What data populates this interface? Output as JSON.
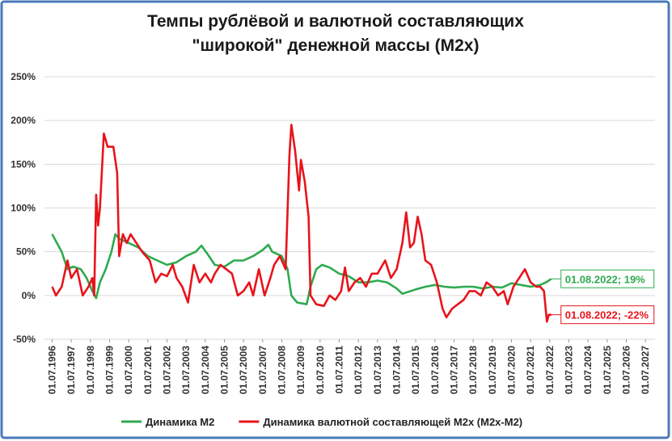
{
  "chart_data": {
    "type": "line",
    "title": [
      "Темпы рублёвой и валютной составляющих",
      "\"широкой\" денежной массы (М2х)"
    ],
    "xlim": [
      1996.1,
      2028.0
    ],
    "ylim": [
      -50,
      250
    ],
    "yticks": [
      {
        "value": -50,
        "label": "-50%"
      },
      {
        "value": 0,
        "label": "0%"
      },
      {
        "value": 50,
        "label": "50%"
      },
      {
        "value": 100,
        "label": "100%"
      },
      {
        "value": 150,
        "label": "150%"
      },
      {
        "value": 200,
        "label": "200%"
      },
      {
        "value": 250,
        "label": "250%"
      }
    ],
    "xticks": [
      {
        "value": 1996.5,
        "label": "01.07.1996"
      },
      {
        "value": 1997.5,
        "label": "01.07.1997"
      },
      {
        "value": 1998.5,
        "label": "01.07.1998"
      },
      {
        "value": 1999.5,
        "label": "01.07.1999"
      },
      {
        "value": 2000.5,
        "label": "01.07.2000"
      },
      {
        "value": 2001.5,
        "label": "01.07.2001"
      },
      {
        "value": 2002.5,
        "label": "01.07.2002"
      },
      {
        "value": 2003.5,
        "label": "01.07.2003"
      },
      {
        "value": 2004.5,
        "label": "01.07.2004"
      },
      {
        "value": 2005.5,
        "label": "01.07.2005"
      },
      {
        "value": 2006.5,
        "label": "01.07.2006"
      },
      {
        "value": 2007.5,
        "label": "01.07.2007"
      },
      {
        "value": 2008.5,
        "label": "01.07.2008"
      },
      {
        "value": 2009.5,
        "label": "01.07.2009"
      },
      {
        "value": 2010.5,
        "label": "01.07.2010"
      },
      {
        "value": 2011.5,
        "label": "01.07.2011"
      },
      {
        "value": 2012.5,
        "label": "01.07.2012"
      },
      {
        "value": 2013.5,
        "label": "01.07.2013"
      },
      {
        "value": 2014.5,
        "label": "01.07.2014"
      },
      {
        "value": 2015.5,
        "label": "01.07.2015"
      },
      {
        "value": 2016.5,
        "label": "01.07.2016"
      },
      {
        "value": 2017.5,
        "label": "01.07.2017"
      },
      {
        "value": 2018.5,
        "label": "01.07.2018"
      },
      {
        "value": 2019.5,
        "label": "01.07.2019"
      },
      {
        "value": 2020.5,
        "label": "01.07.2020"
      },
      {
        "value": 2021.5,
        "label": "01.07.2021"
      },
      {
        "value": 2022.5,
        "label": "01.07.2022"
      },
      {
        "value": 2023.5,
        "label": "01.07.2023"
      },
      {
        "value": 2024.5,
        "label": "01.07.2024"
      },
      {
        "value": 2025.5,
        "label": "01.07.2025"
      },
      {
        "value": 2026.5,
        "label": "01.07.2026"
      },
      {
        "value": 2027.5,
        "label": "01.07.2027"
      }
    ],
    "grid": true,
    "series": [
      {
        "name": "Динамика М2",
        "color": "#2eaa50",
        "x": [
          1996.5,
          1997.0,
          1997.3,
          1997.6,
          1998.0,
          1998.3,
          1998.6,
          1998.8,
          1999.0,
          1999.3,
          1999.6,
          1999.8,
          2000.0,
          2000.5,
          2001.0,
          2001.5,
          2002.0,
          2002.5,
          2003.0,
          2003.5,
          2004.0,
          2004.3,
          2004.6,
          2005.0,
          2005.5,
          2006.0,
          2006.5,
          2007.0,
          2007.5,
          2007.8,
          2008.0,
          2008.5,
          2008.8,
          2009.0,
          2009.3,
          2009.8,
          2010.0,
          2010.3,
          2010.6,
          2011.0,
          2011.5,
          2012.0,
          2012.5,
          2013.0,
          2013.5,
          2014.0,
          2014.5,
          2014.8,
          2015.5,
          2016.0,
          2016.5,
          2017.0,
          2017.5,
          2018.0,
          2018.5,
          2019.0,
          2019.5,
          2020.0,
          2020.5,
          2021.0,
          2021.5,
          2022.0,
          2022.3,
          2022.58
        ],
        "values": [
          70,
          50,
          30,
          33,
          30,
          20,
          5,
          -3,
          15,
          30,
          50,
          70,
          65,
          60,
          55,
          45,
          40,
          35,
          38,
          45,
          50,
          57,
          48,
          35,
          33,
          40,
          40,
          45,
          52,
          58,
          50,
          45,
          30,
          0,
          -8,
          -10,
          10,
          30,
          35,
          32,
          25,
          22,
          15,
          15,
          17,
          15,
          8,
          2,
          7,
          10,
          12,
          10,
          9,
          10,
          10,
          8,
          10,
          9,
          14,
          12,
          10,
          12,
          15,
          19
        ]
      },
      {
        "name": "Динамика валютной составляющей М2х (М2х-М2)",
        "color": "#e8141b",
        "x": [
          1996.5,
          1996.7,
          1997.0,
          1997.3,
          1997.5,
          1997.8,
          1998.1,
          1998.4,
          1998.6,
          1998.7,
          1998.8,
          1998.9,
          1999.0,
          1999.2,
          1999.4,
          1999.7,
          1999.9,
          2000.0,
          2000.2,
          2000.4,
          2000.6,
          2000.9,
          2001.2,
          2001.6,
          2001.9,
          2002.2,
          2002.5,
          2002.8,
          2003.0,
          2003.3,
          2003.6,
          2003.9,
          2004.2,
          2004.5,
          2004.8,
          2005.0,
          2005.3,
          2005.6,
          2005.9,
          2006.2,
          2006.5,
          2006.8,
          2007.0,
          2007.3,
          2007.6,
          2007.9,
          2008.1,
          2008.4,
          2008.7,
          2008.9,
          2009.0,
          2009.2,
          2009.4,
          2009.5,
          2009.7,
          2009.9,
          2010.0,
          2010.3,
          2010.7,
          2011.0,
          2011.3,
          2011.6,
          2011.8,
          2012.0,
          2012.3,
          2012.6,
          2012.9,
          2013.2,
          2013.5,
          2013.9,
          2014.2,
          2014.5,
          2014.8,
          2015.0,
          2015.2,
          2015.4,
          2015.6,
          2015.8,
          2016.0,
          2016.3,
          2016.6,
          2016.9,
          2017.1,
          2017.4,
          2017.7,
          2018.0,
          2018.3,
          2018.6,
          2018.9,
          2019.2,
          2019.5,
          2019.8,
          2020.1,
          2020.3,
          2020.6,
          2020.9,
          2021.2,
          2021.5,
          2021.8,
          2022.0,
          2022.2,
          2022.35,
          2022.45,
          2022.58
        ],
        "values": [
          10,
          0,
          10,
          40,
          20,
          30,
          0,
          10,
          20,
          0,
          115,
          80,
          100,
          185,
          170,
          170,
          140,
          45,
          70,
          60,
          70,
          60,
          50,
          40,
          15,
          25,
          22,
          35,
          20,
          10,
          -8,
          35,
          15,
          25,
          15,
          25,
          35,
          30,
          25,
          0,
          5,
          15,
          0,
          30,
          0,
          20,
          35,
          45,
          30,
          160,
          195,
          165,
          120,
          155,
          130,
          90,
          0,
          -10,
          -12,
          0,
          -5,
          5,
          32,
          5,
          15,
          20,
          10,
          25,
          25,
          40,
          20,
          30,
          60,
          95,
          55,
          60,
          90,
          70,
          40,
          35,
          15,
          -15,
          -25,
          -15,
          -10,
          -5,
          5,
          5,
          0,
          15,
          10,
          0,
          5,
          -10,
          10,
          20,
          30,
          15,
          10,
          10,
          5,
          -30,
          -22,
          -22
        ]
      }
    ],
    "annotations": [
      {
        "text": "01.08.2022; 19%",
        "color": "#2eaa50",
        "series": 0
      },
      {
        "text": "01.08.2022; -22%",
        "color": "#e8141b",
        "series": 1
      }
    ]
  }
}
